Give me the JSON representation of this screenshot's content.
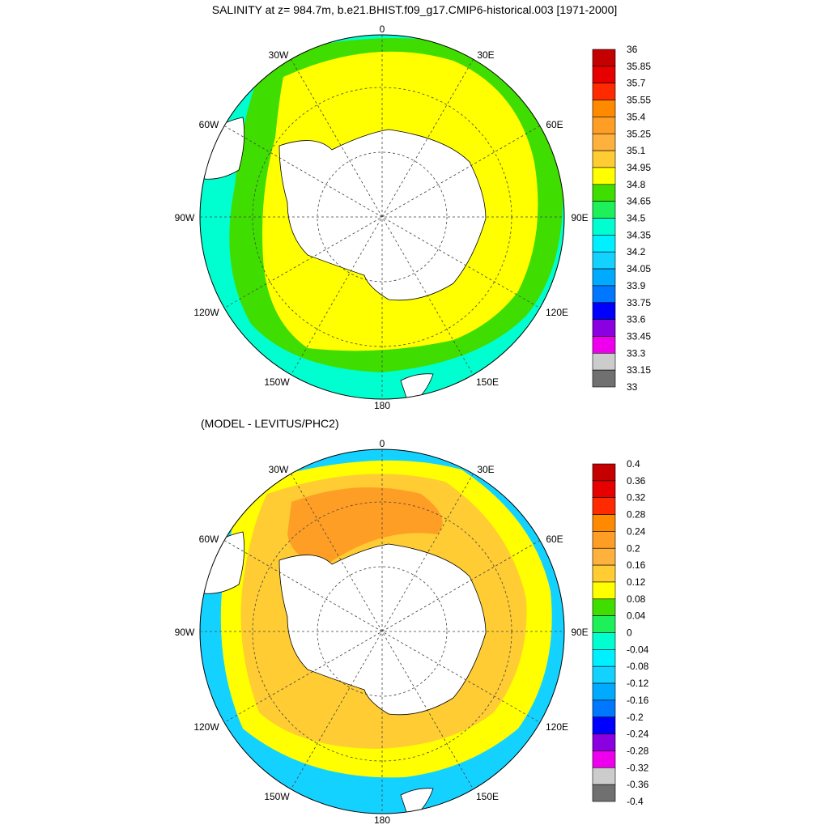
{
  "title": "SALINITY at z= 984.7m, b.e21.BHIST.f09_g17.CMIP6-historical.003 [1971-2000]",
  "subtitle": "(MODEL - LEVITUS/PHC2)",
  "longitude_labels": [
    "0",
    "30E",
    "60E",
    "90E",
    "120E",
    "150E",
    "180",
    "150W",
    "120W",
    "90W",
    "60W",
    "30W"
  ],
  "colorbar_top": {
    "levels": [
      "36",
      "35.85",
      "35.7",
      "35.55",
      "35.4",
      "35.25",
      "35.1",
      "34.95",
      "34.8",
      "34.65",
      "34.5",
      "34.35",
      "34.2",
      "34.05",
      "33.9",
      "33.75",
      "33.6",
      "33.45",
      "33.3",
      "33.15",
      "33"
    ],
    "colors": [
      "#c40000",
      "#e60000",
      "#ff2a00",
      "#ff8a00",
      "#ff9e25",
      "#ffb13d",
      "#ffcc33",
      "#ffff00",
      "#3fdd00",
      "#1ef05a",
      "#00ffd0",
      "#00f0ff",
      "#14d2ff",
      "#00aaff",
      "#0077ff",
      "#0000ff",
      "#8a00e0",
      "#ee00ee",
      "#cccccc",
      "#707070"
    ]
  },
  "colorbar_bottom": {
    "levels": [
      "0.4",
      "0.36",
      "0.32",
      "0.28",
      "0.24",
      "0.2",
      "0.16",
      "0.12",
      "0.08",
      "0.04",
      "0",
      "-0.04",
      "-0.08",
      "-0.12",
      "-0.16",
      "-0.2",
      "-0.24",
      "-0.28",
      "-0.32",
      "-0.36",
      "-0.4"
    ],
    "colors": [
      "#c40000",
      "#e60000",
      "#ff2a00",
      "#ff8a00",
      "#ff9e25",
      "#ffb13d",
      "#ffcc33",
      "#ffff00",
      "#3fdd00",
      "#1ef05a",
      "#00ffd0",
      "#00f0ff",
      "#14d2ff",
      "#00aaff",
      "#0077ff",
      "#0000ff",
      "#8a00e0",
      "#ee00ee",
      "#cccccc",
      "#707070"
    ]
  },
  "colors": {
    "land": "#ffffff",
    "ocean_top_main": "#ffff00",
    "ocean_top_rim": "#3fdd00",
    "ocean_top_outer": "#00ffd0",
    "ocean_bottom_main": "#ffcc33",
    "ocean_bottom_mid": "#ff9e25",
    "ocean_bottom_rim": "#ffff00",
    "ocean_bottom_outer": "#14d2ff"
  }
}
